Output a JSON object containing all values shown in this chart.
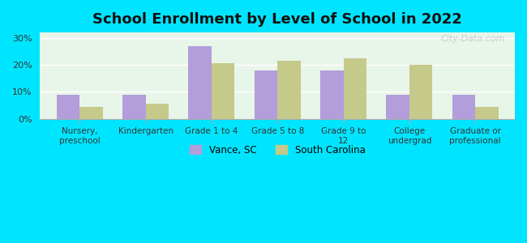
{
  "title": "School Enrollment by Level of School in 2022",
  "categories": [
    "Nursery,\npreschool",
    "Kindergarten",
    "Grade 1 to 4",
    "Grade 5 to 8",
    "Grade 9 to\n12",
    "College\nundergrad",
    "Graduate or\nprofessional"
  ],
  "vance_values": [
    9.0,
    9.0,
    27.0,
    18.0,
    18.0,
    9.0,
    9.0
  ],
  "sc_values": [
    4.5,
    5.5,
    20.5,
    21.5,
    22.5,
    20.0,
    4.5
  ],
  "vance_color": "#b39ddb",
  "sc_color": "#c5c98a",
  "background_outer": "#00e5ff",
  "background_inner": "#e8f5e9",
  "yticks": [
    0,
    10,
    20,
    30
  ],
  "ylim": [
    0,
    32
  ],
  "bar_width": 0.35,
  "legend_labels": [
    "Vance, SC",
    "South Carolina"
  ],
  "watermark": "City-Data.com"
}
